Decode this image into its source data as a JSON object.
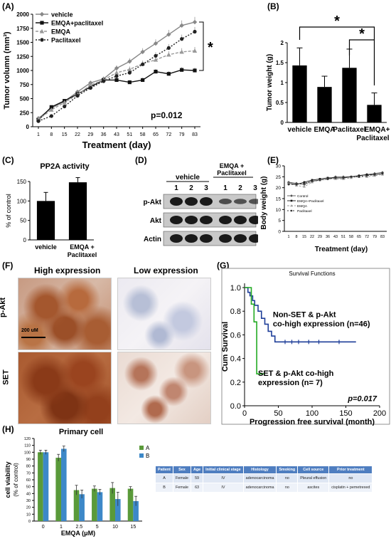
{
  "panels": {
    "A": "(A)",
    "B": "(B)",
    "C": "(C)",
    "D": "(D)",
    "E": "(E)",
    "F": "(F)",
    "G": "(G)",
    "H": "(H)"
  },
  "chart_data": [
    {
      "id": "A",
      "type": "line",
      "ylabel": "Tumor volumn (mm³)",
      "xlabel": "Treatment (day)",
      "categories": [
        "1",
        "8",
        "15",
        "22",
        "29",
        "36",
        "43",
        "51",
        "58",
        "65",
        "72",
        "79",
        "83"
      ],
      "ylim": [
        0,
        2000
      ],
      "yticks": [
        0,
        250,
        500,
        750,
        1000,
        1250,
        1500,
        1750,
        2000
      ],
      "series": [
        {
          "name": "vehicle",
          "values": [
            150,
            330,
            450,
            620,
            780,
            850,
            1040,
            1160,
            1330,
            1480,
            1640,
            1800,
            1860
          ],
          "color": "#888888",
          "marker": "diamond",
          "dash": ""
        },
        {
          "name": "EMQA+paclitaxel",
          "values": [
            120,
            350,
            460,
            580,
            710,
            830,
            830,
            790,
            830,
            980,
            940,
            1010,
            1000
          ],
          "color": "#111111",
          "marker": "square",
          "dash": ""
        },
        {
          "name": "EMQA",
          "values": [
            130,
            300,
            430,
            570,
            740,
            830,
            960,
            1020,
            1120,
            1190,
            1280,
            1330,
            1350
          ],
          "color": "#999999",
          "marker": "triangle",
          "dash": "4,2"
        },
        {
          "name": "Paclitaxel",
          "values": [
            100,
            190,
            360,
            550,
            690,
            810,
            900,
            960,
            1110,
            1260,
            1400,
            1560,
            1690
          ],
          "color": "#222222",
          "marker": "circle",
          "dash": "2,2"
        }
      ],
      "annotations": [
        "*",
        "p=0.012"
      ]
    },
    {
      "id": "B",
      "type": "bar",
      "ylabel": "Tumor weight (g)",
      "categories": [
        "vehicle",
        "EMQA",
        "Paclitaxel",
        "EMQA+ Paclitaxel"
      ],
      "values": [
        1.43,
        0.89,
        1.37,
        0.44
      ],
      "errors": [
        0.44,
        0.27,
        0.47,
        0.3
      ],
      "ylim": [
        0,
        2
      ],
      "yticks": [
        0,
        0.5,
        1,
        1.5,
        2
      ],
      "annotations": [
        "*",
        "*"
      ]
    },
    {
      "id": "C",
      "type": "bar",
      "title": "PP2A activity",
      "ylabel": "% of control",
      "categories": [
        "vehicle",
        "EMQA + Paclitaxel"
      ],
      "values": [
        100,
        148
      ],
      "errors": [
        22,
        12
      ],
      "ylim": [
        0,
        150
      ],
      "yticks": [
        0,
        50,
        100,
        150
      ]
    },
    {
      "id": "E",
      "type": "line",
      "ylabel": "Body weight (g)",
      "xlabel": "Treatment (day)",
      "categories": [
        "1",
        "8",
        "15",
        "22",
        "29",
        "36",
        "43",
        "51",
        "58",
        "65",
        "72",
        "79",
        "83"
      ],
      "ylim": [
        0,
        30
      ],
      "yticks": [
        0,
        5,
        10,
        15,
        20,
        25,
        30
      ],
      "legend_position": "bottom-left",
      "series": [
        {
          "name": "Control",
          "values": [
            22.5,
            22,
            21.5,
            23,
            23.5,
            24,
            25,
            25,
            25,
            25.5,
            26,
            26.5,
            27
          ],
          "color": "#555555",
          "marker": "diamond",
          "dash": ""
        },
        {
          "name": "EMQA+Paclitaxel",
          "values": [
            22,
            21.5,
            22.5,
            23.5,
            24,
            24.5,
            24.5,
            24.5,
            25,
            25.5,
            26,
            26,
            26.5
          ],
          "color": "#111111",
          "marker": "square",
          "dash": ""
        },
        {
          "name": "EMQA",
          "values": [
            22,
            21,
            20.5,
            22.5,
            23.5,
            24,
            24,
            24,
            24.5,
            25,
            25,
            25.5,
            26
          ],
          "color": "#999999",
          "marker": "triangle",
          "dash": "3,2"
        },
        {
          "name": "Paclitaxel",
          "values": [
            21.5,
            21.5,
            22,
            23,
            23.5,
            24,
            24.5,
            24.5,
            25,
            25,
            25.5,
            26,
            26.5
          ],
          "color": "#333333",
          "marker": "circle",
          "dash": "2,2"
        }
      ]
    },
    {
      "id": "G",
      "type": "line",
      "title": "Survival Functions",
      "ylabel": "Cum Survival",
      "xlabel": "Progression free survival (month)",
      "xlim": [
        0,
        200
      ],
      "xticks": [
        0,
        50,
        100,
        150,
        200
      ],
      "ylim": [
        0,
        1
      ],
      "yticks": [
        0.0,
        0.2,
        0.4,
        0.6,
        0.8,
        1.0
      ],
      "series": [
        {
          "name": "Non-SET & p-Akt co-high expression (n=46)",
          "color": "#1f3f99",
          "steps": [
            [
              0,
              1.0
            ],
            [
              5,
              1.0
            ],
            [
              5,
              0.96
            ],
            [
              8,
              0.96
            ],
            [
              8,
              0.93
            ],
            [
              12,
              0.93
            ],
            [
              12,
              0.89
            ],
            [
              15,
              0.89
            ],
            [
              15,
              0.85
            ],
            [
              20,
              0.85
            ],
            [
              20,
              0.8
            ],
            [
              25,
              0.8
            ],
            [
              25,
              0.74
            ],
            [
              30,
              0.74
            ],
            [
              30,
              0.69
            ],
            [
              35,
              0.69
            ],
            [
              35,
              0.63
            ],
            [
              40,
              0.63
            ],
            [
              40,
              0.59
            ],
            [
              45,
              0.59
            ],
            [
              45,
              0.54
            ],
            [
              165,
              0.54
            ]
          ],
          "censor": [
            [
              60,
              0.54
            ],
            [
              70,
              0.54
            ],
            [
              80,
              0.54
            ],
            [
              95,
              0.54
            ],
            [
              110,
              0.54
            ],
            [
              140,
              0.54
            ]
          ]
        },
        {
          "name": "SET & p-Akt co-high expression (n= 7)",
          "color": "#22aa22",
          "steps": [
            [
              0,
              1.0
            ],
            [
              10,
              1.0
            ],
            [
              10,
              0.86
            ],
            [
              14,
              0.86
            ],
            [
              14,
              0.71
            ],
            [
              18,
              0.71
            ],
            [
              18,
              0.29
            ],
            [
              18,
              0.27
            ],
            [
              30,
              0.27
            ]
          ],
          "censor": []
        }
      ],
      "annotations": [
        "p=0.017"
      ]
    },
    {
      "id": "H",
      "type": "bar",
      "title": "Primary cell",
      "ylabel": "cell viability (% of control)",
      "xlabel": "EMQA  (μM)",
      "categories": [
        "0",
        "1",
        "2.5",
        "5",
        "10",
        "15"
      ],
      "ylim": [
        0,
        120
      ],
      "yticks": [
        0,
        10,
        20,
        30,
        40,
        50,
        60,
        70,
        80,
        90,
        100,
        110,
        120
      ],
      "series": [
        {
          "name": "A",
          "color": "#5a9a3a",
          "values": [
            100,
            92,
            45,
            47,
            48,
            47
          ],
          "errors": [
            3,
            5,
            7,
            4,
            8,
            3
          ]
        },
        {
          "name": "B",
          "color": "#3d88c8",
          "values": [
            100,
            105,
            39,
            42,
            32,
            29
          ],
          "errors": [
            3,
            4,
            6,
            4,
            10,
            7
          ]
        }
      ]
    }
  ],
  "blot": {
    "title": "EMQA + Paclitaxel",
    "group": "vehicle",
    "lanes": [
      "1",
      "2",
      "3",
      "1",
      "2",
      "3"
    ],
    "rows": [
      "p-Akt",
      "Akt",
      "Actin"
    ]
  },
  "ihc": {
    "col_high": "High expression",
    "col_low": "Low expression",
    "row1": "p-Akt",
    "row2": "SET",
    "scale": "200 uM"
  },
  "patient_table": {
    "headers": [
      "Patient",
      "Sex",
      "Age",
      "Initial clinical stage",
      "Histology",
      "Smoking",
      "Cell source",
      "Prior treatment"
    ],
    "rows": [
      [
        "A",
        "Female",
        "59",
        "IV",
        "adenocarcinoma",
        "no",
        "Pleural effusion",
        "no"
      ],
      [
        "B",
        "Female",
        "63",
        "IV",
        "adenocarcinoma",
        "no",
        "ascites",
        "cisplatin + pemetrexed"
      ]
    ]
  }
}
